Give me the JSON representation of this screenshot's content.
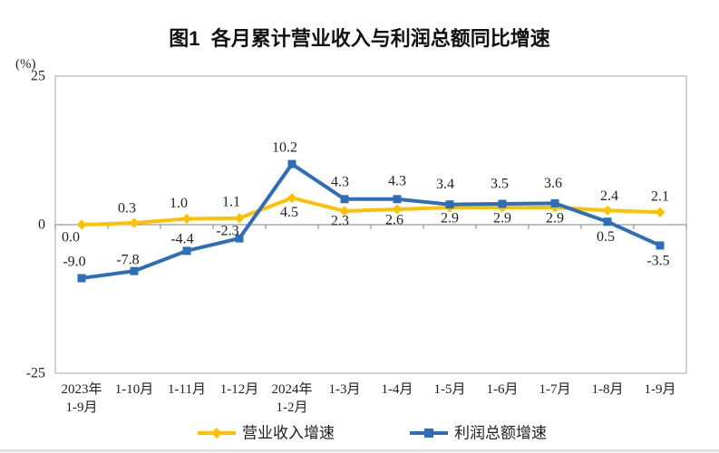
{
  "chart_data": {
    "type": "line",
    "title": "图1  各月累计营业收入与利润总额同比增速",
    "ylabel": "(%)",
    "xlabel": "",
    "ylim": [
      -25,
      25
    ],
    "yticks": [
      25,
      0,
      -25
    ],
    "grid": false,
    "legend_position": "bottom",
    "categories": [
      [
        "2023年",
        "1-9月"
      ],
      [
        "1-10月"
      ],
      [
        "1-11月"
      ],
      [
        "1-12月"
      ],
      [
        "2024年",
        "1-2月"
      ],
      [
        "1-3月"
      ],
      [
        "1-4月"
      ],
      [
        "1-5月"
      ],
      [
        "1-6月"
      ],
      [
        "1-7月"
      ],
      [
        "1-8月"
      ],
      [
        "1-9月"
      ]
    ],
    "series": [
      {
        "name": "营业收入增速",
        "color": "#FFC000",
        "marker": "diamond",
        "values": [
          0.0,
          0.3,
          1.0,
          1.1,
          4.5,
          2.3,
          2.6,
          2.9,
          2.9,
          2.9,
          2.4,
          2.1
        ],
        "label_offsets": [
          [
            -12,
            14
          ],
          [
            -8,
            -16
          ],
          [
            -9,
            -17
          ],
          [
            -9,
            -18
          ],
          [
            -3,
            16
          ],
          [
            -5,
            11
          ],
          [
            -3,
            12
          ],
          [
            0,
            12
          ],
          [
            0,
            12
          ],
          [
            0,
            12
          ],
          [
            2,
            -16
          ],
          [
            0,
            -17
          ]
        ]
      },
      {
        "name": "利润总额增速",
        "color": "#2E6DB8",
        "marker": "square",
        "values": [
          -9.0,
          -7.8,
          -4.4,
          -2.3,
          10.2,
          4.3,
          4.3,
          3.4,
          3.5,
          3.6,
          0.5,
          -3.5
        ],
        "label_offsets": [
          [
            -8,
            -18
          ],
          [
            -7,
            -12
          ],
          [
            -5,
            -13
          ],
          [
            -13,
            -8
          ],
          [
            -8,
            -18
          ],
          [
            -5,
            -19
          ],
          [
            0,
            -20
          ],
          [
            -5,
            -22
          ],
          [
            -3,
            -22
          ],
          [
            -2,
            -22
          ],
          [
            -2,
            17
          ],
          [
            -2,
            17
          ]
        ]
      }
    ]
  }
}
